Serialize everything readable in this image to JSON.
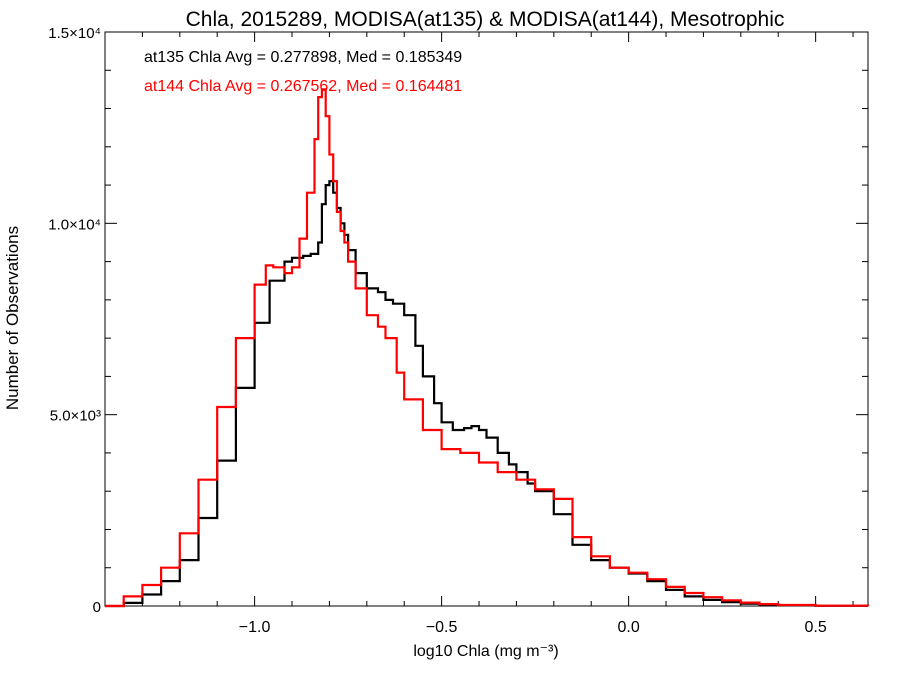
{
  "chart_data": {
    "type": "line",
    "style": "step histogram",
    "title": "Chla, 2015289, MODISA(at135) & MODISA(at144), Mesotrophic",
    "xlabel": "log10 Chla (mg m⁻³)",
    "ylabel": "Number of Observations",
    "xlim": [
      -1.4,
      0.64
    ],
    "ylim": [
      0,
      15000
    ],
    "x_ticks": [
      {
        "value": -1.0,
        "label": "−1.0"
      },
      {
        "value": -0.5,
        "label": "−0.5"
      },
      {
        "value": 0.0,
        "label": "0.0"
      },
      {
        "value": 0.5,
        "label": "0.5"
      }
    ],
    "y_ticks": [
      {
        "value": 0,
        "label": "0"
      },
      {
        "value": 5000,
        "label": "5.0×10³"
      },
      {
        "value": 10000,
        "label": "1.0×10⁴"
      },
      {
        "value": 15000,
        "label": "1.5×10⁴"
      }
    ],
    "grid": false,
    "legend": "top-left",
    "annotations": [
      {
        "text": "at135 Chla Avg = 0.277898, Med = 0.185349",
        "color": "#000000"
      },
      {
        "text": "at144 Chla Avg = 0.267562, Med = 0.164481",
        "color": "#ff0000"
      }
    ],
    "series": [
      {
        "name": "at135",
        "color": "#000000",
        "x": [
          -1.4,
          -1.35,
          -1.3,
          -1.25,
          -1.2,
          -1.15,
          -1.1,
          -1.05,
          -1.0,
          -0.96,
          -0.92,
          -0.9,
          -0.87,
          -0.85,
          -0.83,
          -0.82,
          -0.81,
          -0.8,
          -0.79,
          -0.78,
          -0.77,
          -0.76,
          -0.75,
          -0.73,
          -0.7,
          -0.67,
          -0.65,
          -0.63,
          -0.6,
          -0.57,
          -0.55,
          -0.52,
          -0.5,
          -0.47,
          -0.44,
          -0.42,
          -0.4,
          -0.38,
          -0.35,
          -0.32,
          -0.3,
          -0.27,
          -0.25,
          -0.2,
          -0.15,
          -0.1,
          -0.05,
          0.0,
          0.05,
          0.1,
          0.15,
          0.2,
          0.25,
          0.3,
          0.35,
          0.4,
          0.5,
          0.64
        ],
        "values": [
          0,
          80,
          300,
          650,
          1200,
          2300,
          3800,
          5700,
          7400,
          8500,
          9000,
          9100,
          9150,
          9200,
          9500,
          10500,
          11000,
          11100,
          10800,
          10400,
          10000,
          9700,
          9300,
          8700,
          8300,
          8200,
          8000,
          7900,
          7600,
          6800,
          6000,
          5300,
          4800,
          4600,
          4650,
          4700,
          4600,
          4400,
          4000,
          3700,
          3500,
          3200,
          3000,
          2400,
          1600,
          1200,
          1000,
          850,
          650,
          420,
          250,
          160,
          100,
          60,
          35,
          15,
          5,
          0
        ]
      },
      {
        "name": "at144",
        "color": "#ff0000",
        "x": [
          -1.4,
          -1.35,
          -1.3,
          -1.25,
          -1.2,
          -1.15,
          -1.1,
          -1.05,
          -1.0,
          -0.97,
          -0.95,
          -0.92,
          -0.9,
          -0.88,
          -0.86,
          -0.84,
          -0.83,
          -0.82,
          -0.81,
          -0.8,
          -0.79,
          -0.78,
          -0.77,
          -0.76,
          -0.75,
          -0.73,
          -0.7,
          -0.67,
          -0.65,
          -0.62,
          -0.6,
          -0.55,
          -0.5,
          -0.45,
          -0.4,
          -0.35,
          -0.3,
          -0.25,
          -0.2,
          -0.15,
          -0.1,
          -0.05,
          0.0,
          0.05,
          0.1,
          0.15,
          0.2,
          0.25,
          0.3,
          0.35,
          0.4,
          0.5,
          0.64
        ],
        "values": [
          0,
          250,
          550,
          1000,
          1900,
          3300,
          5200,
          7000,
          8400,
          8900,
          8850,
          8700,
          8850,
          9600,
          10800,
          12200,
          13300,
          13500,
          12800,
          11800,
          11100,
          10300,
          9800,
          9500,
          9000,
          8300,
          7600,
          7300,
          7000,
          6100,
          5400,
          4600,
          4100,
          4000,
          3750,
          3500,
          3300,
          3050,
          2800,
          1800,
          1300,
          1000,
          870,
          700,
          500,
          340,
          230,
          150,
          90,
          50,
          25,
          8,
          0
        ]
      }
    ]
  }
}
